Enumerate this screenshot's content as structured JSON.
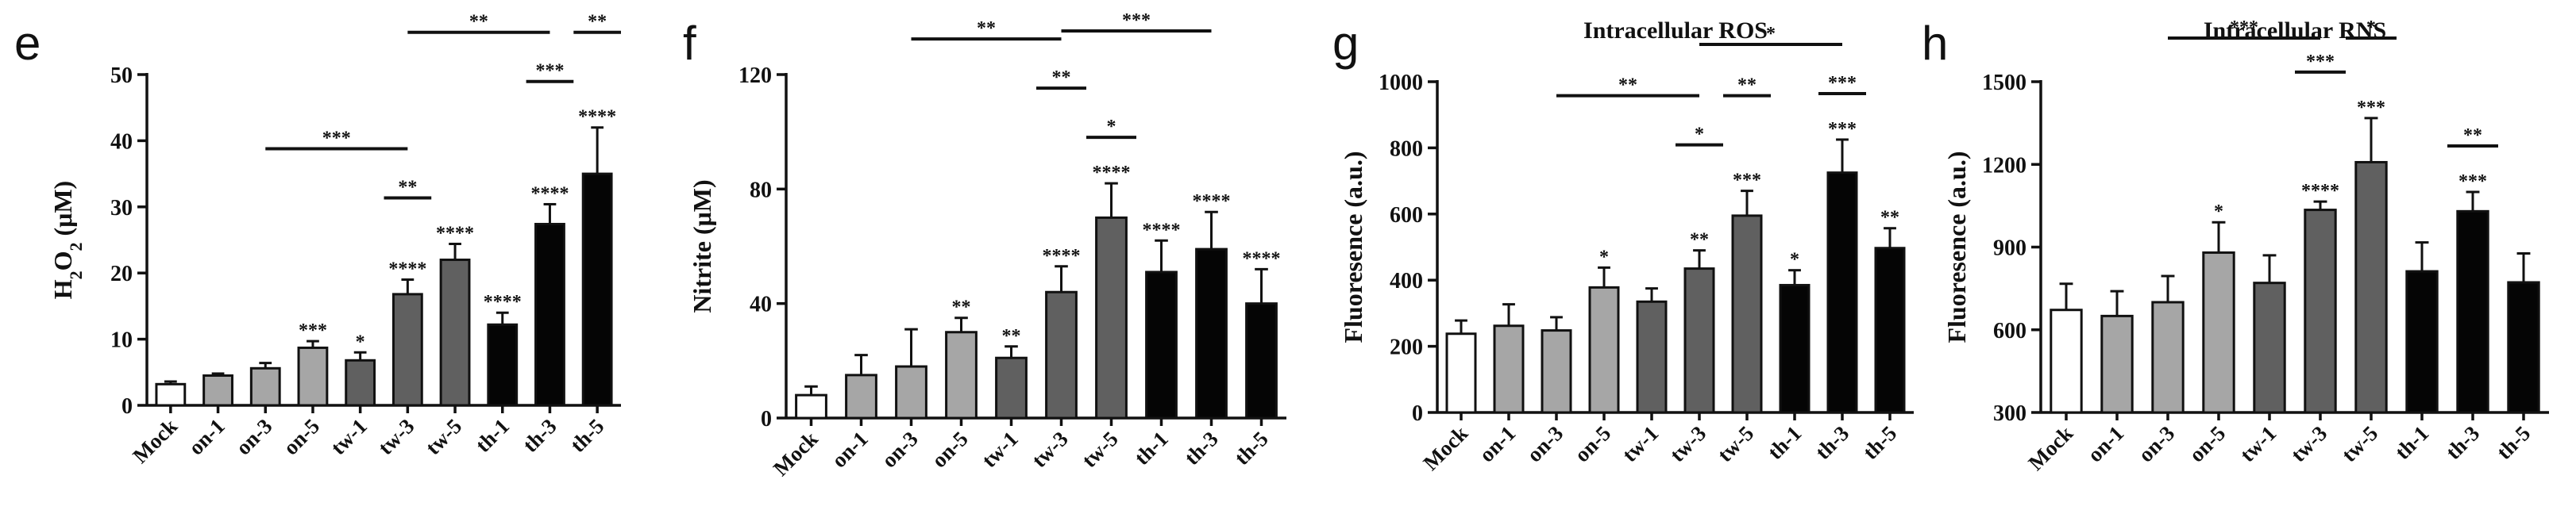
{
  "chart_data": [
    {
      "panel": "e",
      "type": "bar",
      "title": "",
      "ylabel_parts": [
        "H",
        "2",
        "O",
        "2",
        " (μM)"
      ],
      "categories": [
        "Mock",
        "on-1",
        "on-3",
        "on-5",
        "tw-1",
        "tw-3",
        "tw-5",
        "th-1",
        "th-3",
        "th-5"
      ],
      "values": [
        3.2,
        4.5,
        5.6,
        8.7,
        6.8,
        16.8,
        22.0,
        12.2,
        27.4,
        35.0
      ],
      "errors": [
        0.4,
        0.3,
        0.8,
        1.0,
        1.2,
        2.2,
        2.4,
        1.8,
        3.0,
        7.0
      ],
      "ylim": [
        0,
        50
      ],
      "yticks": [
        0,
        10,
        20,
        30,
        40,
        50
      ],
      "labels": [
        "",
        "",
        "",
        "***",
        "*",
        "****",
        "****",
        "****",
        "****",
        "****"
      ],
      "brackets": [
        {
          "from": 2,
          "to": 5,
          "label": "***"
        },
        {
          "from": 4.5,
          "to": 5.5,
          "label": "**"
        },
        {
          "from": 5,
          "to": 8,
          "label": "**"
        },
        {
          "from": 7.5,
          "to": 8.5,
          "label": "***"
        },
        {
          "from": 8.5,
          "to": 9.5,
          "label": "**"
        }
      ]
    },
    {
      "panel": "f",
      "type": "bar",
      "title": "",
      "ylabel": "Nitrite (μM)",
      "categories": [
        "Mock",
        "on-1",
        "on-3",
        "on-5",
        "tw-1",
        "tw-3",
        "tw-5",
        "th-1",
        "th-3",
        "th-5"
      ],
      "values": [
        8,
        15,
        18,
        30,
        21,
        44,
        70,
        51,
        59,
        40
      ],
      "errors": [
        3,
        7,
        13,
        5,
        4,
        9,
        12,
        11,
        13,
        12
      ],
      "ylim": [
        0,
        120
      ],
      "yticks": [
        0,
        40,
        80,
        120
      ],
      "labels": [
        "",
        "",
        "",
        "**",
        "**",
        "****",
        "****",
        "****",
        "****",
        "****"
      ],
      "brackets": [
        {
          "from": 2,
          "to": 5,
          "label": "**"
        },
        {
          "from": 5,
          "to": 8,
          "label": "***"
        },
        {
          "from": 5.5,
          "to": 6.5,
          "label": "*"
        },
        {
          "from": 4.5,
          "to": 5.5,
          "label": "**"
        }
      ]
    },
    {
      "panel": "g",
      "type": "bar",
      "title": "Intracellular ROS",
      "ylabel": "Fluoresence (a.u.)",
      "categories": [
        "Mock",
        "on-1",
        "on-3",
        "on-5",
        "tw-1",
        "tw-3",
        "tw-5",
        "th-1",
        "th-3",
        "th-5"
      ],
      "values": [
        238,
        262,
        248,
        378,
        335,
        435,
        595,
        385,
        725,
        497
      ],
      "errors": [
        40,
        65,
        40,
        60,
        40,
        55,
        75,
        45,
        100,
        60
      ],
      "ylim": [
        0,
        1000
      ],
      "yticks": [
        0,
        200,
        400,
        600,
        800,
        1000
      ],
      "labels": [
        "",
        "",
        "",
        "*",
        "",
        "**",
        "***",
        "*",
        "***",
        "**"
      ],
      "brackets": [
        {
          "from": 2,
          "to": 5,
          "label": "**"
        },
        {
          "from": 4.5,
          "to": 5.5,
          "label": "*"
        },
        {
          "from": 5.5,
          "to": 6.5,
          "label": "**"
        },
        {
          "from": 7.5,
          "to": 8.5,
          "label": "***"
        },
        {
          "from": 5,
          "to": 8,
          "label": "*"
        }
      ]
    },
    {
      "panel": "h",
      "type": "bar",
      "title": "Intracellular RNS",
      "ylabel": "Fluoresence (a.u.)",
      "categories": [
        "Mock",
        "on-1",
        "on-3",
        "on-5",
        "tw-1",
        "tw-3",
        "tw-5",
        "th-1",
        "th-3",
        "th-5"
      ],
      "values": [
        672,
        650,
        700,
        880,
        770,
        1035,
        1208,
        812,
        1030,
        772
      ],
      "errors": [
        95,
        90,
        95,
        110,
        100,
        30,
        160,
        105,
        70,
        105
      ],
      "ylim": [
        300,
        1500
      ],
      "yticks": [
        300,
        600,
        900,
        1200,
        1500
      ],
      "labels": [
        "",
        "",
        "",
        "*",
        "",
        "****",
        "***",
        "",
        "***",
        ""
      ],
      "brackets": [
        {
          "from": 2,
          "to": 5,
          "label": "***"
        },
        {
          "from": 4.5,
          "to": 5.5,
          "label": "***"
        },
        {
          "from": 5.5,
          "to": 6.5,
          "label": "*"
        },
        {
          "from": 7.5,
          "to": 8.5,
          "label": "**"
        }
      ]
    }
  ],
  "colors": {
    "mock": "#ffffff",
    "one": "#a6a6a6",
    "two": "#606060",
    "three": "#050505",
    "ink": "#111111"
  }
}
